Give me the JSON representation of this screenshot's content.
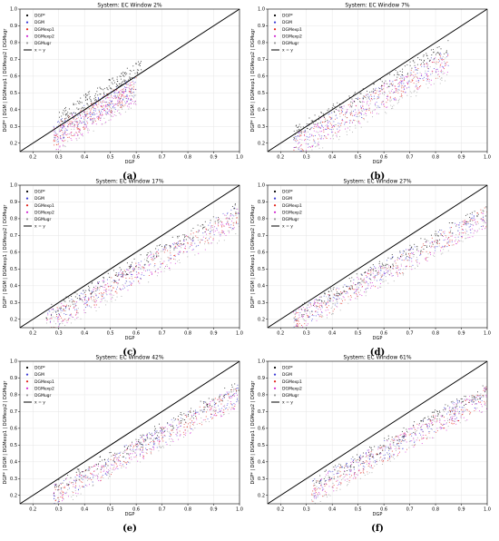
{
  "figure": {
    "panels": [
      {
        "label": "(a)",
        "title": "System: EC Window 2%"
      },
      {
        "label": "(b)",
        "title": "System: EC Window 7%"
      },
      {
        "label": "(c)",
        "title": "System: EC Window 17%"
      },
      {
        "label": "(d)",
        "title": "System: EC Window 27%"
      },
      {
        "label": "(e)",
        "title": "System: EC Window 42%"
      },
      {
        "label": "(f)",
        "title": "System: EC Window 61%"
      }
    ]
  },
  "chart_data": [
    {
      "type": "scatter",
      "title": "System: EC Window 2%",
      "xlabel": "DGP",
      "ylabel": "DGP* | DGM | DGMexp1 | DGMexp2 | DGMugr",
      "xlim": [
        0.15,
        1.0
      ],
      "ylim": [
        0.15,
        1.0
      ],
      "xticks": [
        "0.2",
        "0.3",
        "0.4",
        "0.5",
        "0.6",
        "0.7",
        "0.8",
        "0.9",
        "1.0"
      ],
      "yticks": [
        "0.2",
        "0.3",
        "0.4",
        "0.5",
        "0.6",
        "0.7",
        "0.8",
        "0.9",
        "1.0"
      ],
      "grid": true,
      "legend_position": "top-left",
      "legend": [
        "DGP*",
        "DGM",
        "DGMexp1",
        "DGMexp2",
        "DGMugr",
        "x = y"
      ],
      "series": [
        {
          "name": "DGP*",
          "color": "#000000",
          "x_range": [
            0.3,
            0.62
          ],
          "slope": 0.95,
          "intercept": 0.1,
          "spread": 0.06
        },
        {
          "name": "DGM",
          "color": "#3b3bd6",
          "x_range": [
            0.28,
            0.6
          ],
          "slope": 0.9,
          "intercept": 0.05,
          "spread": 0.1
        },
        {
          "name": "DGMexp1",
          "color": "#e2231a",
          "x_range": [
            0.28,
            0.6
          ],
          "slope": 0.9,
          "intercept": 0.04,
          "spread": 0.1
        },
        {
          "name": "DGMexp2",
          "color": "#d020d0",
          "x_range": [
            0.28,
            0.6
          ],
          "slope": 0.85,
          "intercept": 0.05,
          "spread": 0.12
        },
        {
          "name": "DGMugr",
          "color": "#9a9a9a",
          "x_range": [
            0.28,
            0.6
          ],
          "slope": 0.9,
          "intercept": 0.02,
          "spread": 0.12
        },
        {
          "name": "x = y",
          "x": [
            0.15,
            1.0
          ],
          "y": [
            0.15,
            1.0
          ],
          "color": "#000000"
        }
      ]
    },
    {
      "type": "scatter",
      "title": "System: EC Window 7%",
      "xlabel": "DGP",
      "ylabel": "DGP* | DGM | DGMexp1 | DGMexp2 | DGMugr",
      "xlim": [
        0.15,
        1.0
      ],
      "ylim": [
        0.15,
        1.0
      ],
      "xticks": [
        "0.2",
        "0.3",
        "0.4",
        "0.5",
        "0.6",
        "0.7",
        "0.8",
        "0.9",
        "1.0"
      ],
      "yticks": [
        "0.2",
        "0.3",
        "0.4",
        "0.5",
        "0.6",
        "0.7",
        "0.8",
        "0.9",
        "1.0"
      ],
      "grid": true,
      "legend_position": "top-left",
      "legend": [
        "DGP*",
        "DGM",
        "DGMexp1",
        "DGMexp2",
        "DGMugr",
        "x = y"
      ],
      "series": [
        {
          "name": "DGP*",
          "color": "#000000",
          "x_range": [
            0.25,
            0.85
          ],
          "slope": 0.85,
          "intercept": 0.08,
          "spread": 0.06
        },
        {
          "name": "DGM",
          "color": "#3b3bd6",
          "x_range": [
            0.25,
            0.85
          ],
          "slope": 0.85,
          "intercept": 0.03,
          "spread": 0.1
        },
        {
          "name": "DGMexp1",
          "color": "#e2231a",
          "x_range": [
            0.25,
            0.85
          ],
          "slope": 0.85,
          "intercept": 0.02,
          "spread": 0.1
        },
        {
          "name": "DGMexp2",
          "color": "#d020d0",
          "x_range": [
            0.25,
            0.85
          ],
          "slope": 0.82,
          "intercept": 0.04,
          "spread": 0.12
        },
        {
          "name": "DGMugr",
          "color": "#9a9a9a",
          "x_range": [
            0.25,
            0.85
          ],
          "slope": 0.85,
          "intercept": 0.0,
          "spread": 0.12
        },
        {
          "name": "x = y",
          "x": [
            0.15,
            1.0
          ],
          "y": [
            0.15,
            1.0
          ],
          "color": "#000000"
        }
      ]
    },
    {
      "type": "scatter",
      "title": "System: EC Window 17%",
      "xlabel": "DGP",
      "ylabel": "DGP* | DGM | DGMexp1 | DGMexp2 | DGMugr",
      "xlim": [
        0.15,
        1.0
      ],
      "ylim": [
        0.15,
        1.0
      ],
      "xticks": [
        "0.2",
        "0.3",
        "0.4",
        "0.5",
        "0.6",
        "0.7",
        "0.8",
        "0.9",
        "1.0"
      ],
      "yticks": [
        "0.2",
        "0.3",
        "0.4",
        "0.5",
        "0.6",
        "0.7",
        "0.8",
        "0.9",
        "1.0"
      ],
      "grid": true,
      "legend_position": "top-left",
      "legend": [
        "DGP*",
        "DGM",
        "DGMexp1",
        "DGMexp2",
        "DGMugr",
        "x = y"
      ],
      "series": [
        {
          "name": "DGP*",
          "color": "#000000",
          "x_range": [
            0.25,
            1.0
          ],
          "slope": 0.85,
          "intercept": 0.05,
          "spread": 0.06
        },
        {
          "name": "DGM",
          "color": "#3b3bd6",
          "x_range": [
            0.25,
            1.0
          ],
          "slope": 0.85,
          "intercept": 0.02,
          "spread": 0.09
        },
        {
          "name": "DGMexp1",
          "color": "#e2231a",
          "x_range": [
            0.25,
            1.0
          ],
          "slope": 0.85,
          "intercept": 0.01,
          "spread": 0.09
        },
        {
          "name": "DGMexp2",
          "color": "#d020d0",
          "x_range": [
            0.25,
            1.0
          ],
          "slope": 0.82,
          "intercept": 0.03,
          "spread": 0.11
        },
        {
          "name": "DGMugr",
          "color": "#9a9a9a",
          "x_range": [
            0.25,
            1.0
          ],
          "slope": 0.85,
          "intercept": 0.0,
          "spread": 0.11
        },
        {
          "name": "x = y",
          "x": [
            0.15,
            1.0
          ],
          "y": [
            0.15,
            1.0
          ],
          "color": "#000000"
        }
      ]
    },
    {
      "type": "scatter",
      "title": "System: EC Window 27%",
      "xlabel": "DGP",
      "ylabel": "DGP* | DGM | DGMexp1 | DGMexp2 | DGMugr",
      "xlim": [
        0.15,
        1.0
      ],
      "ylim": [
        0.15,
        1.0
      ],
      "xticks": [
        "0.2",
        "0.3",
        "0.4",
        "0.5",
        "0.6",
        "0.7",
        "0.8",
        "0.9",
        "1.0"
      ],
      "yticks": [
        "0.2",
        "0.3",
        "0.4",
        "0.5",
        "0.6",
        "0.7",
        "0.8",
        "0.9",
        "1.0"
      ],
      "grid": true,
      "legend_position": "top-left",
      "legend": [
        "DGP*",
        "DGM",
        "DGMexp1",
        "DGMexp2",
        "DGMugr",
        "x = y"
      ],
      "series": [
        {
          "name": "DGP*",
          "color": "#000000",
          "x_range": [
            0.25,
            1.0
          ],
          "slope": 0.85,
          "intercept": 0.04,
          "spread": 0.06
        },
        {
          "name": "DGM",
          "color": "#3b3bd6",
          "x_range": [
            0.25,
            1.0
          ],
          "slope": 0.85,
          "intercept": 0.02,
          "spread": 0.09
        },
        {
          "name": "DGMexp1",
          "color": "#e2231a",
          "x_range": [
            0.25,
            1.0
          ],
          "slope": 0.85,
          "intercept": 0.01,
          "spread": 0.09
        },
        {
          "name": "DGMexp2",
          "color": "#d020d0",
          "x_range": [
            0.25,
            1.0
          ],
          "slope": 0.82,
          "intercept": 0.03,
          "spread": 0.1
        },
        {
          "name": "DGMugr",
          "color": "#9a9a9a",
          "x_range": [
            0.25,
            1.0
          ],
          "slope": 0.85,
          "intercept": 0.0,
          "spread": 0.1
        },
        {
          "name": "x = y",
          "x": [
            0.15,
            1.0
          ],
          "y": [
            0.15,
            1.0
          ],
          "color": "#000000"
        }
      ]
    },
    {
      "type": "scatter",
      "title": "System: EC Window 42%",
      "xlabel": "DGP",
      "ylabel": "DGP* | DGM | DGMexp1 | DGMexp2 | DGMugr",
      "xlim": [
        0.15,
        1.0
      ],
      "ylim": [
        0.15,
        1.0
      ],
      "xticks": [
        "0.2",
        "0.3",
        "0.4",
        "0.5",
        "0.6",
        "0.7",
        "0.8",
        "0.9",
        "1.0"
      ],
      "yticks": [
        "0.2",
        "0.3",
        "0.4",
        "0.5",
        "0.6",
        "0.7",
        "0.8",
        "0.9",
        "1.0"
      ],
      "grid": true,
      "legend_position": "top-left",
      "legend": [
        "DGP*",
        "DGM",
        "DGMexp1",
        "DGMexp2",
        "DGMugr",
        "x = y"
      ],
      "series": [
        {
          "name": "DGP*",
          "color": "#000000",
          "x_range": [
            0.28,
            1.0
          ],
          "slope": 0.85,
          "intercept": 0.03,
          "spread": 0.06
        },
        {
          "name": "DGM",
          "color": "#3b3bd6",
          "x_range": [
            0.28,
            1.0
          ],
          "slope": 0.85,
          "intercept": 0.01,
          "spread": 0.09
        },
        {
          "name": "DGMexp1",
          "color": "#e2231a",
          "x_range": [
            0.28,
            1.0
          ],
          "slope": 0.85,
          "intercept": 0.0,
          "spread": 0.09
        },
        {
          "name": "DGMexp2",
          "color": "#d020d0",
          "x_range": [
            0.28,
            1.0
          ],
          "slope": 0.82,
          "intercept": 0.02,
          "spread": 0.1
        },
        {
          "name": "DGMugr",
          "color": "#9a9a9a",
          "x_range": [
            0.28,
            1.0
          ],
          "slope": 0.85,
          "intercept": -0.01,
          "spread": 0.1
        },
        {
          "name": "x = y",
          "x": [
            0.15,
            1.0
          ],
          "y": [
            0.15,
            1.0
          ],
          "color": "#000000"
        }
      ]
    },
    {
      "type": "scatter",
      "title": "System: EC Window 61%",
      "xlabel": "DGP",
      "ylabel": "DGP* | DGM | DGMexp1 | DGMexp2 | DGMugr",
      "xlim": [
        0.15,
        1.0
      ],
      "ylim": [
        0.15,
        1.0
      ],
      "xticks": [
        "0.2",
        "0.3",
        "0.4",
        "0.5",
        "0.6",
        "0.7",
        "0.8",
        "0.9",
        "1.0"
      ],
      "yticks": [
        "0.2",
        "0.3",
        "0.4",
        "0.5",
        "0.6",
        "0.7",
        "0.8",
        "0.9",
        "1.0"
      ],
      "grid": true,
      "legend_position": "top-left",
      "legend": [
        "DGP*",
        "DGM",
        "DGMexp1",
        "DGMexp2",
        "DGMugr",
        "x = y"
      ],
      "series": [
        {
          "name": "DGP*",
          "color": "#000000",
          "x_range": [
            0.32,
            1.0
          ],
          "slope": 0.85,
          "intercept": 0.02,
          "spread": 0.06
        },
        {
          "name": "DGM",
          "color": "#3b3bd6",
          "x_range": [
            0.32,
            1.0
          ],
          "slope": 0.85,
          "intercept": 0.0,
          "spread": 0.09
        },
        {
          "name": "DGMexp1",
          "color": "#e2231a",
          "x_range": [
            0.32,
            1.0
          ],
          "slope": 0.85,
          "intercept": -0.01,
          "spread": 0.09
        },
        {
          "name": "DGMexp2",
          "color": "#d020d0",
          "x_range": [
            0.32,
            1.0
          ],
          "slope": 0.82,
          "intercept": 0.01,
          "spread": 0.1
        },
        {
          "name": "DGMugr",
          "color": "#9a9a9a",
          "x_range": [
            0.32,
            1.0
          ],
          "slope": 0.85,
          "intercept": -0.02,
          "spread": 0.1
        },
        {
          "name": "x = y",
          "x": [
            0.15,
            1.0
          ],
          "y": [
            0.15,
            1.0
          ],
          "color": "#000000"
        }
      ]
    }
  ]
}
